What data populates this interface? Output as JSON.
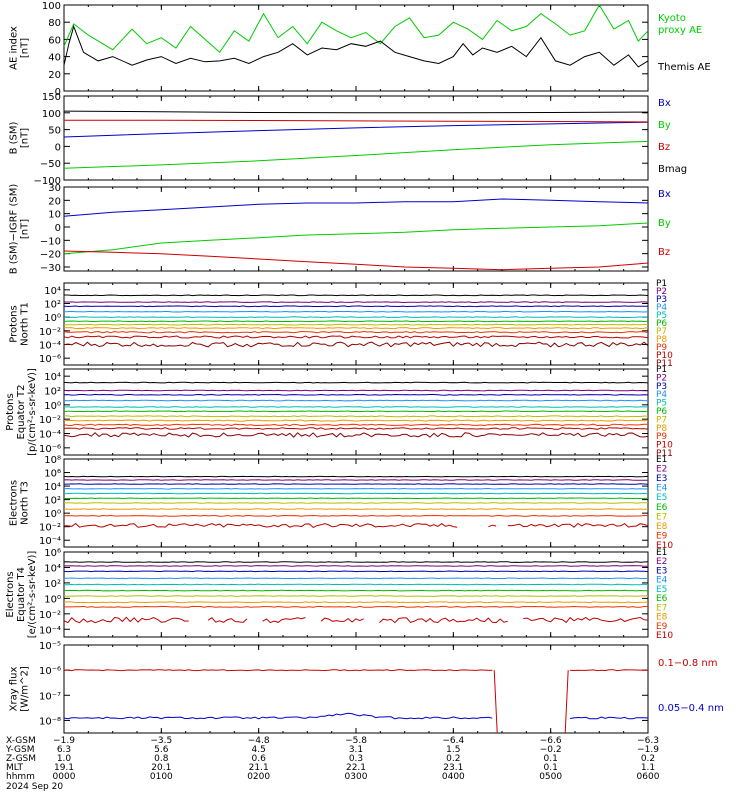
{
  "chart_data": [
    {
      "type": "line",
      "panel_id": "ae",
      "ylabel": [
        "AE index",
        "[nT]"
      ],
      "ylim": [
        0,
        100
      ],
      "y_ticks": [
        0,
        20,
        40,
        60,
        80,
        100
      ],
      "y_tick_labels": [
        "0",
        "20",
        "40",
        "60",
        "80",
        "100"
      ],
      "legend_placement": "right",
      "series": [
        {
          "name": "Kyoto proxy AE",
          "legend_lines": [
            "Kyoto",
            "proxy AE"
          ],
          "color": "#00cc00",
          "x": [
            0,
            0.1,
            0.25,
            0.5,
            0.7,
            0.85,
            1,
            1.15,
            1.3,
            1.45,
            1.6,
            1.75,
            1.9,
            2.05,
            2.2,
            2.35,
            2.5,
            2.65,
            2.8,
            2.95,
            3.1,
            3.25,
            3.4,
            3.55,
            3.7,
            3.85,
            4,
            4.15,
            4.3,
            4.45,
            4.6,
            4.75,
            4.9,
            5.05,
            5.2,
            5.35,
            5.5,
            5.65,
            5.8,
            5.9,
            6
          ],
          "y": [
            52,
            78,
            65,
            48,
            72,
            55,
            62,
            50,
            75,
            60,
            45,
            70,
            58,
            90,
            62,
            75,
            55,
            80,
            70,
            62,
            68,
            55,
            75,
            85,
            62,
            65,
            80,
            72,
            60,
            82,
            70,
            75,
            90,
            78,
            65,
            70,
            100,
            72,
            82,
            58,
            70
          ]
        },
        {
          "name": "Themis AE",
          "legend_lines": [
            "Themis AE"
          ],
          "color": "#000000",
          "x": [
            0,
            0.05,
            0.1,
            0.2,
            0.35,
            0.5,
            0.7,
            0.85,
            1,
            1.15,
            1.3,
            1.45,
            1.6,
            1.75,
            1.9,
            2.05,
            2.2,
            2.35,
            2.5,
            2.65,
            2.8,
            2.95,
            3.1,
            3.25,
            3.4,
            3.55,
            3.7,
            3.85,
            4,
            4.1,
            4.2,
            4.3,
            4.45,
            4.6,
            4.75,
            4.9,
            5.05,
            5.2,
            5.35,
            5.5,
            5.65,
            5.8,
            5.9,
            6
          ],
          "y": [
            30,
            55,
            75,
            45,
            35,
            40,
            30,
            36,
            40,
            32,
            38,
            34,
            35,
            38,
            32,
            40,
            45,
            55,
            42,
            50,
            48,
            55,
            52,
            58,
            45,
            40,
            35,
            32,
            40,
            55,
            42,
            50,
            45,
            52,
            40,
            62,
            35,
            30,
            40,
            45,
            30,
            42,
            28,
            35
          ]
        }
      ]
    },
    {
      "type": "line",
      "panel_id": "bsm",
      "ylabel": [
        "B (SM)",
        "[nT]"
      ],
      "ylim": [
        -100,
        150
      ],
      "y_ticks": [
        -100,
        -50,
        0,
        50,
        100,
        150
      ],
      "y_tick_labels": [
        "−100",
        "−50",
        "0",
        "50",
        "100",
        "150"
      ],
      "legend_placement": "right",
      "series": [
        {
          "name": "Bx",
          "color": "#0000cc",
          "x": [
            0,
            1,
            2,
            3,
            4,
            5,
            6
          ],
          "y": [
            28,
            38,
            47,
            55,
            62,
            67,
            72
          ]
        },
        {
          "name": "By",
          "color": "#00cc00",
          "x": [
            0,
            1,
            2,
            3,
            4,
            5,
            6
          ],
          "y": [
            -65,
            -55,
            -43,
            -27,
            -10,
            5,
            15
          ]
        },
        {
          "name": "Bz",
          "color": "#cc0000",
          "x": [
            0,
            1,
            2,
            3,
            4,
            5,
            6
          ],
          "y": [
            78,
            78,
            77,
            76,
            75,
            74,
            73
          ]
        },
        {
          "name": "Bmag",
          "color": "#000000",
          "x": [
            0,
            1,
            2,
            3,
            4,
            5,
            6
          ],
          "y": [
            105,
            103,
            101,
            100,
            100,
            101,
            102
          ]
        }
      ]
    },
    {
      "type": "line",
      "panel_id": "bsm-igrf",
      "ylabel": [
        "B (SM)−IGRF (SM)",
        "[nT]"
      ],
      "ylim": [
        -33,
        30
      ],
      "y_ticks": [
        -30,
        -20,
        -10,
        0,
        10,
        20,
        30
      ],
      "y_tick_labels": [
        "−30",
        "−20",
        "−10",
        "0",
        "10",
        "20",
        "30"
      ],
      "legend_placement": "right",
      "series": [
        {
          "name": "Bx",
          "color": "#0000cc",
          "x": [
            0,
            0.5,
            1,
            1.5,
            2,
            2.5,
            3,
            3.5,
            4,
            4.5,
            5,
            5.5,
            6
          ],
          "y": [
            8,
            11,
            13,
            15,
            17,
            18,
            18,
            19,
            19,
            21,
            20,
            19,
            18
          ]
        },
        {
          "name": "By",
          "color": "#00cc00",
          "x": [
            0,
            0.5,
            1,
            1.5,
            2,
            2.5,
            3,
            3.5,
            4,
            4.5,
            5,
            5.5,
            6
          ],
          "y": [
            -20,
            -17,
            -12,
            -10,
            -8,
            -6,
            -5,
            -4,
            -2,
            -1,
            0,
            1,
            3
          ]
        },
        {
          "name": "Bz",
          "color": "#cc0000",
          "x": [
            0,
            0.5,
            1,
            1.5,
            2,
            2.5,
            3,
            3.5,
            4,
            4.5,
            5,
            5.5,
            6
          ],
          "y": [
            -18,
            -19,
            -20,
            -22,
            -24,
            -26,
            -28,
            -30,
            -31,
            -32,
            -31,
            -30,
            -27
          ]
        }
      ]
    },
    {
      "type": "line",
      "panel_id": "protons-t1",
      "ylabel": [
        "Protons",
        "North T1"
      ],
      "yscale": "log",
      "ylim": [
        -7,
        5
      ],
      "y_ticks": [
        -6,
        -4,
        -2,
        0,
        2,
        4
      ],
      "y_tick_labels": [
        "10⁻⁶",
        "10⁻⁴",
        "10⁻²",
        "10⁰",
        "10²",
        "10⁴"
      ],
      "legend_placement": "right",
      "series": [
        {
          "name": "P1",
          "color": "#000000",
          "log10_level": 3.2,
          "noise": 0.05,
          "gaps": []
        },
        {
          "name": "P2",
          "color": "#7a007a",
          "log10_level": 2.2,
          "noise": 0.05,
          "gaps": []
        },
        {
          "name": "P3",
          "color": "#0000aa",
          "log10_level": 1.6,
          "noise": 0.05,
          "gaps": []
        },
        {
          "name": "P4",
          "color": "#1e90ff",
          "log10_level": 0.8,
          "noise": 0.05,
          "gaps": []
        },
        {
          "name": "P5",
          "color": "#00bbbb",
          "log10_level": 0.0,
          "noise": 0.05,
          "gaps": []
        },
        {
          "name": "P6",
          "color": "#00bb00",
          "log10_level": -0.6,
          "noise": 0.05,
          "gaps": []
        },
        {
          "name": "P7",
          "color": "#bbbb00",
          "log10_level": -1.1,
          "noise": 0.05,
          "gaps": []
        },
        {
          "name": "P8",
          "color": "#ee9900",
          "log10_level": -1.6,
          "noise": 0.08,
          "gaps": []
        },
        {
          "name": "P9",
          "color": "#ee3300",
          "log10_level": -2.2,
          "noise": 0.1,
          "gaps": []
        },
        {
          "name": "P10",
          "color": "#bb0000",
          "log10_level": -2.9,
          "noise": 0.15,
          "gaps": []
        },
        {
          "name": "P11",
          "color": "#880000",
          "log10_level": -4.0,
          "noise": 0.35,
          "gaps": []
        }
      ]
    },
    {
      "type": "line",
      "panel_id": "protons-t2",
      "ylabel": [
        "Protons",
        "Equator T2",
        "[p/(cm²-s-sr-keV)]"
      ],
      "yscale": "log",
      "ylim": [
        -7,
        5
      ],
      "y_ticks": [
        -6,
        -4,
        -2,
        0,
        2,
        4
      ],
      "y_tick_labels": [
        "10⁻⁶",
        "10⁻⁴",
        "10⁻²",
        "10⁰",
        "10²",
        "10⁴"
      ],
      "legend_placement": "right",
      "series": [
        {
          "name": "P1",
          "color": "#000000",
          "log10_level": 3.1,
          "noise": 0.05,
          "gaps": []
        },
        {
          "name": "P2",
          "color": "#7a007a",
          "log10_level": 2.0,
          "noise": 0.05,
          "gaps": []
        },
        {
          "name": "P3",
          "color": "#0000aa",
          "log10_level": 1.4,
          "noise": 0.05,
          "gaps": []
        },
        {
          "name": "P4",
          "color": "#1e90ff",
          "log10_level": 0.6,
          "noise": 0.05,
          "gaps": []
        },
        {
          "name": "P5",
          "color": "#00bbbb",
          "log10_level": -0.3,
          "noise": 0.05,
          "gaps": []
        },
        {
          "name": "P6",
          "color": "#00bb00",
          "log10_level": -0.9,
          "noise": 0.05,
          "gaps": []
        },
        {
          "name": "P7",
          "color": "#bbbb00",
          "log10_level": -1.6,
          "noise": 0.06,
          "gaps": []
        },
        {
          "name": "P8",
          "color": "#ee9900",
          "log10_level": -2.2,
          "noise": 0.08,
          "gaps": []
        },
        {
          "name": "P9",
          "color": "#ee3300",
          "log10_level": -2.8,
          "noise": 0.1,
          "gaps": []
        },
        {
          "name": "P10",
          "color": "#bb0000",
          "log10_level": -3.3,
          "noise": 0.12,
          "gaps": []
        },
        {
          "name": "P11",
          "color": "#880000",
          "log10_level": -4.2,
          "noise": 0.3,
          "gaps": []
        }
      ]
    },
    {
      "type": "line",
      "panel_id": "electrons-t3",
      "ylabel": [
        "Electrons",
        "North T3"
      ],
      "yscale": "log",
      "ylim": [
        -5,
        8
      ],
      "y_ticks": [
        -4,
        -2,
        0,
        2,
        4,
        6,
        8
      ],
      "y_tick_labels": [
        "10⁻⁴",
        "10⁻²",
        "10⁰",
        "10²",
        "10⁴",
        "10⁶",
        "10⁸"
      ],
      "legend_placement": "right",
      "series": [
        {
          "name": "E1",
          "color": "#000000",
          "log10_level": 5.4,
          "noise": 0.04,
          "gaps": []
        },
        {
          "name": "E2",
          "color": "#7a007a",
          "log10_level": 4.9,
          "noise": 0.04,
          "gaps": []
        },
        {
          "name": "E3",
          "color": "#0000aa",
          "log10_level": 4.3,
          "noise": 0.04,
          "gaps": []
        },
        {
          "name": "E4",
          "color": "#1e90ff",
          "log10_level": 3.6,
          "noise": 0.04,
          "gaps": []
        },
        {
          "name": "E5",
          "color": "#00bbbb",
          "log10_level": 2.9,
          "noise": 0.04,
          "gaps": []
        },
        {
          "name": "E6",
          "color": "#00bb00",
          "log10_level": 2.2,
          "noise": 0.04,
          "gaps": []
        },
        {
          "name": "E7",
          "color": "#bbbb00",
          "log10_level": 1.5,
          "noise": 0.04,
          "gaps": []
        },
        {
          "name": "E8",
          "color": "#ee9900",
          "log10_level": 0.6,
          "noise": 0.05,
          "gaps": []
        },
        {
          "name": "E9",
          "color": "#ee3300",
          "log10_level": -0.4,
          "noise": 0.06,
          "gaps": []
        },
        {
          "name": "E10",
          "color": "#bb0000",
          "log10_level": -1.8,
          "noise": 0.3,
          "gaps": [
            [
              4.05,
              4.35
            ],
            [
              4.45,
              4.55
            ]
          ]
        }
      ]
    },
    {
      "type": "line",
      "panel_id": "electrons-t4",
      "ylabel": [
        "Electrons",
        "Equator T4",
        "[e/(cm²-s-sr-keV)]"
      ],
      "yscale": "log",
      "ylim": [
        -5,
        6
      ],
      "y_ticks": [
        -4,
        -2,
        0,
        2,
        4,
        6
      ],
      "y_tick_labels": [
        "10⁻⁴",
        "10⁻²",
        "10⁰",
        "10²",
        "10⁴",
        "10⁶"
      ],
      "legend_placement": "right",
      "series": [
        {
          "name": "E1",
          "color": "#000000",
          "log10_level": 4.7,
          "noise": 0.04,
          "gaps": []
        },
        {
          "name": "E2",
          "color": "#7a007a",
          "log10_level": 4.2,
          "noise": 0.04,
          "gaps": []
        },
        {
          "name": "E3",
          "color": "#0000aa",
          "log10_level": 3.5,
          "noise": 0.04,
          "gaps": []
        },
        {
          "name": "E4",
          "color": "#1e90ff",
          "log10_level": 2.6,
          "noise": 0.04,
          "gaps": []
        },
        {
          "name": "E5",
          "color": "#00bbbb",
          "log10_level": 1.8,
          "noise": 0.04,
          "gaps": []
        },
        {
          "name": "E6",
          "color": "#00bb00",
          "log10_level": 1.0,
          "noise": 0.04,
          "gaps": []
        },
        {
          "name": "E7",
          "color": "#bbbb00",
          "log10_level": 0.3,
          "noise": 0.04,
          "gaps": []
        },
        {
          "name": "E8",
          "color": "#ee9900",
          "log10_level": -0.5,
          "noise": 0.05,
          "gaps": []
        },
        {
          "name": "E9",
          "color": "#ee3300",
          "log10_level": -1.1,
          "noise": 0.06,
          "gaps": []
        },
        {
          "name": "E10",
          "color": "#bb0000",
          "log10_level": -2.8,
          "noise": 0.35,
          "gaps": [
            [
              1.3,
              1.45
            ],
            [
              1.9,
              2.0
            ],
            [
              2.5,
              2.6
            ],
            [
              3.1,
              3.2
            ],
            [
              4.6,
              4.7
            ]
          ]
        }
      ]
    },
    {
      "type": "line",
      "panel_id": "xray",
      "ylabel": [
        "Xray flux",
        "[W/m^2]"
      ],
      "yscale": "log",
      "ylim": [
        -8.5,
        -5
      ],
      "y_ticks": [
        -8,
        -7,
        -6,
        -5
      ],
      "y_tick_labels": [
        "10⁻⁸",
        "10⁻⁷",
        "10⁻⁶",
        "10⁻⁵"
      ],
      "legend_placement": "right",
      "series": [
        {
          "name": "0.1−0.8 nm",
          "color": "#cc0000",
          "log10_level": -6.0,
          "noise": 0.02,
          "gaps": [
            [
              4.42,
              5.18
            ]
          ]
        },
        {
          "name": "0.05−0.4 nm",
          "color": "#0000cc",
          "log10_level": -7.9,
          "noise": 0.04,
          "gaps": [
            [
              4.42,
              5.18
            ]
          ],
          "bump": {
            "center": 2.9,
            "width": 0.25,
            "amp": 0.15
          }
        }
      ]
    }
  ],
  "x_axis": {
    "range_hours": [
      0,
      6
    ],
    "major_ticks": [
      0,
      1,
      2,
      3,
      4,
      5,
      6
    ],
    "table": [
      {
        "label": "X-GSM",
        "values": [
          "−1.9",
          "−3.5",
          "−4.8",
          "−5.8",
          "−6.4",
          "−6.6",
          "−6.3"
        ]
      },
      {
        "label": "Y-GSM",
        "values": [
          "6.3",
          "5.6",
          "4.5",
          "3.1",
          "1.5",
          "−0.2",
          "−1.9"
        ]
      },
      {
        "label": "Z-GSM",
        "values": [
          "1.0",
          "0.8",
          "0.6",
          "0.3",
          "0.2",
          "0.1",
          "0.2"
        ]
      },
      {
        "label": "MLT",
        "values": [
          "19.1",
          "20.1",
          "21.1",
          "22.1",
          "23.1",
          "0.1",
          "1.1"
        ]
      },
      {
        "label": "hhmm",
        "values": [
          "0000",
          "0100",
          "0200",
          "0300",
          "0400",
          "0500",
          "0600"
        ]
      }
    ],
    "date": "2024 Sep 20"
  }
}
